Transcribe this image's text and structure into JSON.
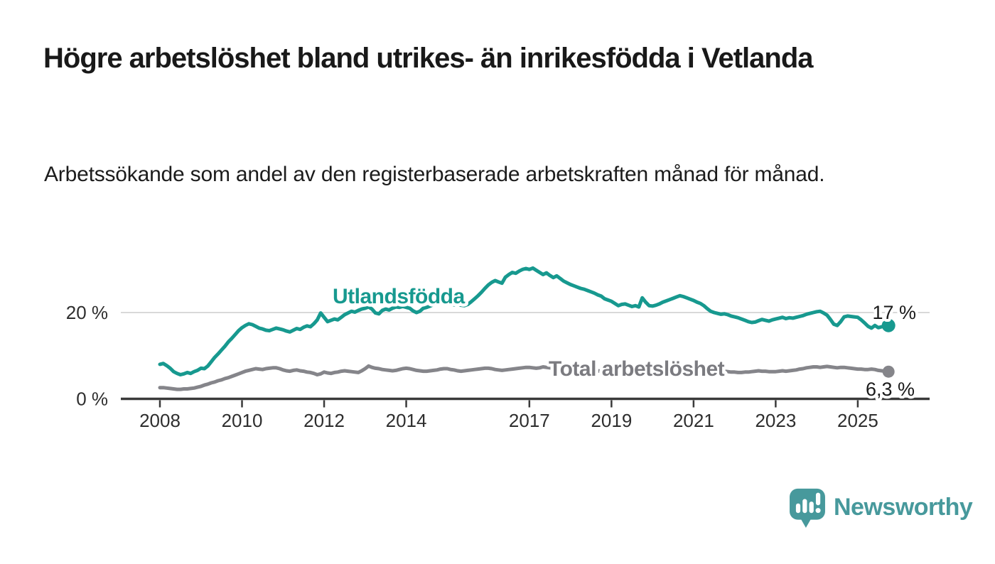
{
  "header": {
    "title": "Högre arbetslöshet bland utrikes- än inrikesfödda i Vetlanda",
    "subtitle": "Arbetssökande som andel av den registerbaserade arbetskraften månad för månad."
  },
  "branding": {
    "name": "Newsworthy",
    "color": "#47999c",
    "icon": "speech-bubble-with-bar-chart-and-exclamation"
  },
  "chart_data": {
    "type": "line",
    "title": "",
    "xlabel": "",
    "ylabel": "",
    "x_unit": "month",
    "y_unit": "%",
    "xlim_years": [
      2007.1,
      2026.7
    ],
    "ylim": [
      0,
      31.5
    ],
    "x_ticks": [
      2008,
      2010,
      2012,
      2014,
      2017,
      2019,
      2021,
      2023,
      2025
    ],
    "y_ticks": [
      {
        "value": 0,
        "label": "0 %",
        "gridline": false
      },
      {
        "value": 20,
        "label": "20 %",
        "gridline": true
      }
    ],
    "grid_color": "#d9d9d9",
    "axis_color": "#3a3a3a",
    "tick_color": "#2e2e2e",
    "end_label_color": "#1a1a1a",
    "legend_position": "inline-labels",
    "series": [
      {
        "name": "Utlandsfödda",
        "slug": "utlandsfodda",
        "color": "#17998f",
        "label_color": "#17998f",
        "start_year": 2008,
        "start_month": 1,
        "end": "2025-10",
        "end_label": "17 %",
        "last_value": 17,
        "values": [
          8.0,
          8.2,
          7.7,
          7.1,
          6.3,
          5.9,
          5.6,
          5.8,
          6.1,
          5.9,
          6.3,
          6.6,
          7.1,
          7.0,
          7.6,
          8.6,
          9.6,
          10.4,
          11.3,
          12.2,
          13.2,
          14.0,
          14.9,
          15.8,
          16.5,
          17.0,
          17.4,
          17.2,
          16.8,
          16.4,
          16.2,
          15.9,
          15.8,
          16.1,
          16.4,
          16.2,
          16.0,
          15.7,
          15.5,
          15.9,
          16.3,
          16.1,
          16.6,
          16.9,
          16.7,
          17.4,
          18.3,
          19.9,
          18.9,
          17.9,
          18.2,
          18.5,
          18.3,
          18.9,
          19.5,
          19.9,
          20.3,
          20.1,
          20.5,
          20.8,
          21.0,
          21.3,
          20.8,
          19.9,
          19.7,
          20.5,
          20.8,
          20.6,
          21.0,
          21.3,
          21.2,
          21.4,
          21.2,
          21.0,
          20.4,
          20.0,
          20.3,
          21.0,
          21.2,
          21.5,
          21.9,
          22.3,
          22.6,
          22.4,
          22.2,
          22.0,
          21.8,
          21.9,
          21.7,
          21.6,
          21.9,
          22.5,
          23.2,
          23.9,
          24.7,
          25.6,
          26.4,
          27.0,
          27.4,
          27.1,
          26.8,
          28.2,
          28.8,
          29.3,
          29.1,
          29.6,
          30.0,
          30.2,
          30.0,
          30.3,
          29.8,
          29.3,
          28.8,
          29.2,
          28.6,
          28.1,
          28.5,
          27.9,
          27.3,
          26.9,
          26.5,
          26.2,
          25.9,
          25.6,
          25.4,
          25.1,
          24.8,
          24.5,
          24.1,
          23.8,
          23.2,
          22.9,
          22.6,
          22.1,
          21.6,
          21.9,
          22.0,
          21.7,
          21.4,
          21.6,
          21.3,
          23.4,
          22.4,
          21.6,
          21.5,
          21.7,
          22.0,
          22.4,
          22.7,
          23.0,
          23.3,
          23.6,
          23.9,
          23.7,
          23.4,
          23.1,
          22.8,
          22.4,
          22.1,
          21.6,
          20.9,
          20.3,
          20.0,
          19.8,
          19.6,
          19.7,
          19.5,
          19.2,
          19.0,
          18.8,
          18.5,
          18.2,
          17.9,
          17.7,
          17.8,
          18.1,
          18.4,
          18.2,
          18.0,
          18.3,
          18.5,
          18.7,
          18.9,
          18.6,
          18.8,
          18.7,
          18.9,
          19.1,
          19.3,
          19.6,
          19.8,
          20.0,
          20.2,
          20.3,
          19.9,
          19.4,
          18.4,
          17.3,
          17.0,
          17.9,
          19.0,
          19.2,
          19.1,
          19.0,
          18.9,
          18.3,
          17.6,
          16.8,
          16.4,
          17.0,
          16.5,
          16.7,
          16.9,
          17.0
        ]
      },
      {
        "name": "Total arbetslöshet",
        "slug": "total-arbetsloshet",
        "color": "#85858a",
        "label_color": "#7b7b80",
        "start_year": 2008,
        "start_month": 1,
        "end": "2025-10",
        "end_label": "6,3 %",
        "last_value": 6.3,
        "values": [
          2.6,
          2.6,
          2.5,
          2.4,
          2.3,
          2.2,
          2.2,
          2.3,
          2.3,
          2.4,
          2.5,
          2.7,
          2.9,
          3.2,
          3.4,
          3.7,
          3.9,
          4.2,
          4.4,
          4.7,
          4.9,
          5.2,
          5.5,
          5.8,
          6.1,
          6.4,
          6.6,
          6.8,
          7.0,
          6.9,
          6.8,
          7.0,
          7.1,
          7.2,
          7.2,
          7.0,
          6.7,
          6.5,
          6.4,
          6.6,
          6.7,
          6.5,
          6.4,
          6.2,
          6.1,
          5.9,
          5.6,
          5.8,
          6.2,
          6.0,
          5.9,
          6.1,
          6.2,
          6.4,
          6.5,
          6.4,
          6.3,
          6.2,
          6.1,
          6.5,
          7.0,
          7.6,
          7.3,
          7.1,
          7.0,
          6.8,
          6.7,
          6.6,
          6.5,
          6.6,
          6.8,
          7.0,
          7.1,
          7.0,
          6.8,
          6.6,
          6.5,
          6.4,
          6.4,
          6.5,
          6.6,
          6.7,
          6.9,
          7.0,
          7.0,
          6.8,
          6.7,
          6.5,
          6.4,
          6.5,
          6.6,
          6.7,
          6.8,
          6.9,
          7.0,
          7.1,
          7.1,
          7.0,
          6.8,
          6.7,
          6.6,
          6.7,
          6.8,
          6.9,
          7.0,
          7.1,
          7.2,
          7.3,
          7.3,
          7.2,
          7.1,
          7.2,
          7.4,
          7.3,
          7.2,
          7.1,
          7.0,
          6.9,
          6.9,
          7.0,
          7.0,
          6.9,
          6.9,
          6.8,
          6.7,
          6.6,
          6.6,
          6.5,
          6.5,
          6.4,
          6.4,
          6.4,
          6.4,
          6.3,
          6.3,
          6.3,
          6.4,
          6.4,
          6.5,
          6.6,
          6.7,
          6.8,
          6.8,
          6.9,
          6.9,
          7.1,
          7.3,
          7.5,
          7.6,
          7.6,
          7.5,
          7.4,
          7.4,
          7.3,
          7.2,
          7.2,
          7.2,
          7.1,
          7.0,
          6.9,
          6.8,
          6.7,
          6.6,
          6.5,
          6.4,
          6.4,
          6.3,
          6.2,
          6.2,
          6.1,
          6.1,
          6.2,
          6.2,
          6.3,
          6.4,
          6.5,
          6.4,
          6.4,
          6.3,
          6.3,
          6.3,
          6.4,
          6.5,
          6.4,
          6.5,
          6.6,
          6.7,
          6.9,
          7.0,
          7.2,
          7.3,
          7.4,
          7.4,
          7.3,
          7.4,
          7.5,
          7.4,
          7.3,
          7.2,
          7.3,
          7.3,
          7.2,
          7.1,
          7.0,
          6.9,
          6.9,
          6.8,
          6.8,
          6.9,
          6.8,
          6.6,
          6.5,
          6.4,
          6.3
        ]
      }
    ]
  }
}
